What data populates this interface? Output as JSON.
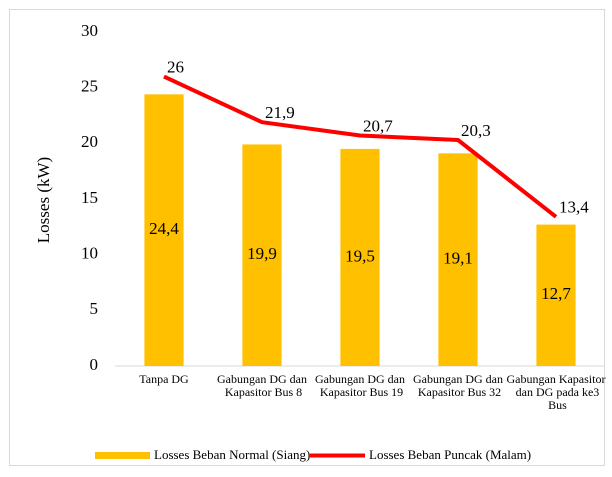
{
  "chart_data": {
    "type": "bar_line",
    "y_axis_label": "Losses (kW)",
    "categories": [
      "Tanpa DG",
      "Gabungan DG dan Kapasitor Bus 8",
      "Gabungan DG dan Kapasitor Bus 19",
      "Gabungan DG dan Kapasitor Bus 32",
      "Gabungan Kapasitor dan DG pada ke3 Bus"
    ],
    "series": [
      {
        "name": "Losses Beban Normal (Siang)",
        "type": "bar",
        "color": "#ffc000",
        "values": [
          24.4,
          19.9,
          19.5,
          19.1,
          12.7
        ],
        "value_labels": [
          "24,4",
          "19,9",
          "19,5",
          "19,1",
          "12,7"
        ]
      },
      {
        "name": "Losses Beban Puncak (Malam)",
        "type": "line",
        "color": "#ff0000",
        "values": [
          26,
          21.9,
          20.7,
          20.3,
          13.4
        ],
        "value_labels": [
          "26",
          "21,9",
          "20,7",
          "20,3",
          "13,4"
        ]
      }
    ],
    "ylim": [
      0,
      30
    ],
    "yticks": [
      0,
      5,
      10,
      15,
      20,
      25,
      30
    ],
    "grid": false,
    "legend": "bottom"
  }
}
